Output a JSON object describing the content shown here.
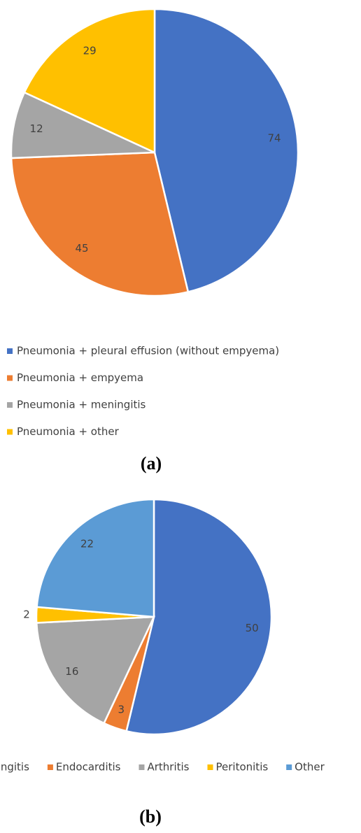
{
  "chart_data": [
    {
      "type": "pie",
      "caption": "(a)",
      "categories": [
        "Pneumonia + pleural effusion (without empyema)",
        "Pneumonia + empyema",
        "Pneumonia + meningitis",
        "Pneumonia + other"
      ],
      "values": [
        74,
        45,
        12,
        29
      ],
      "colors": [
        "#4472c4",
        "#ed7d31",
        "#a5a5a5",
        "#ffc000"
      ],
      "legend": "bottom-left-column"
    },
    {
      "type": "pie",
      "caption": "(b)",
      "categories": [
        "Meningitis",
        "Endocarditis",
        "Arthritis",
        "Peritonitis",
        "Other"
      ],
      "values": [
        50,
        3,
        16,
        2,
        22
      ],
      "colors": [
        "#4472c4",
        "#ed7d31",
        "#a5a5a5",
        "#ffc000",
        "#5b9bd5"
      ],
      "legend": "bottom-row"
    }
  ]
}
